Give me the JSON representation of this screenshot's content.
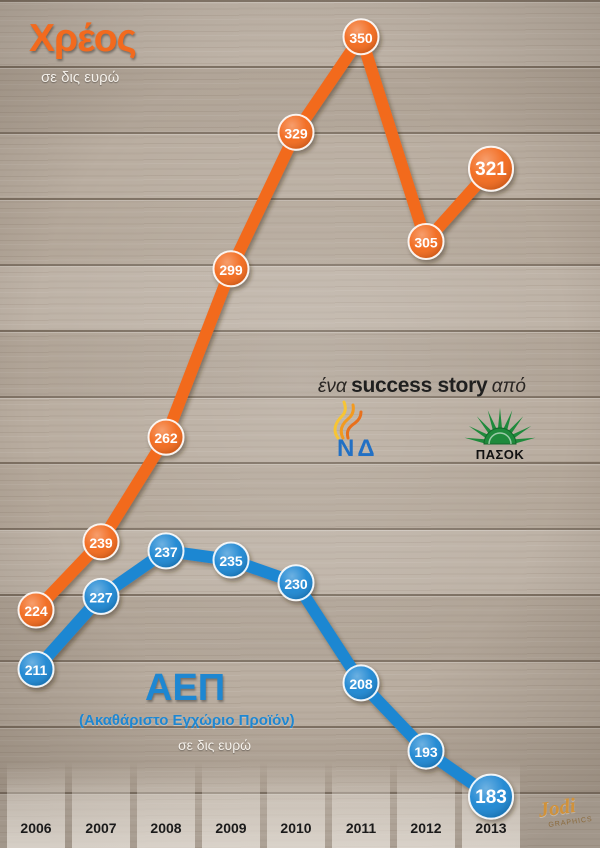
{
  "chart_data": {
    "type": "line",
    "categories": [
      "2006",
      "2007",
      "2008",
      "2009",
      "2010",
      "2011",
      "2012",
      "2013"
    ],
    "series": [
      {
        "name": "Χρέος",
        "unit": "σε δις ευρώ",
        "color": "#f26a1e",
        "values": [
          224,
          239,
          262,
          299,
          329,
          350,
          305,
          321
        ]
      },
      {
        "name": "ΑΕΠ",
        "full_name": "(Ακαθάριστο Εγχώριο Προϊόν)",
        "unit": "σε δις ευρώ",
        "color": "#1e87d2",
        "values": [
          211,
          227,
          237,
          235,
          230,
          208,
          193,
          183
        ]
      }
    ],
    "ylim": [
      175,
      355
    ],
    "grid": false
  },
  "tagline": {
    "pre": "ένα",
    "emphasis": "success story",
    "post": "από"
  },
  "logos": {
    "nd": "ΝΔ",
    "pasok": "ΠΑΣΟΚ",
    "credit": "Jodi",
    "credit_sub": "GRAPHICS"
  },
  "colors": {
    "tagline": "#2a2623",
    "year": "#1b1b1b",
    "nd_blue": "#2270c4",
    "pasok_green": "#1f8a3c",
    "credit": "#d1923a"
  }
}
